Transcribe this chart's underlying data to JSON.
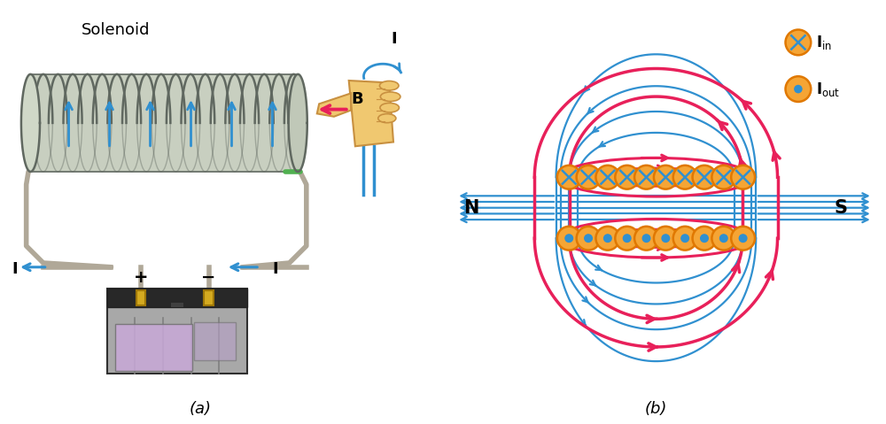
{
  "title_a": "(a)",
  "title_b": "(b)",
  "solenoid_label": "Solenoid",
  "B_label": "B",
  "I_label": "I",
  "N_label": "N",
  "S_label": "S",
  "plus_label": "+",
  "minus_label": "−",
  "coil_color": "#c8cfc0",
  "coil_edge_color": "#606860",
  "coil_fill_light": "#d8dfd0",
  "wire_color": "#b0a898",
  "arrow_blue": "#3090d0",
  "arrow_pink": "#e8205a",
  "orange_fill": "#f5a535",
  "orange_edge": "#e07800",
  "blue_cross": "#3090d0",
  "blue_dot": "#3090d0",
  "battery_gray": "#a8a8a8",
  "battery_dark": "#303030",
  "battery_purple": "#c8a8d8",
  "hand_skin": "#f0c870",
  "background": "#ffffff",
  "green_wire": "#50b050"
}
